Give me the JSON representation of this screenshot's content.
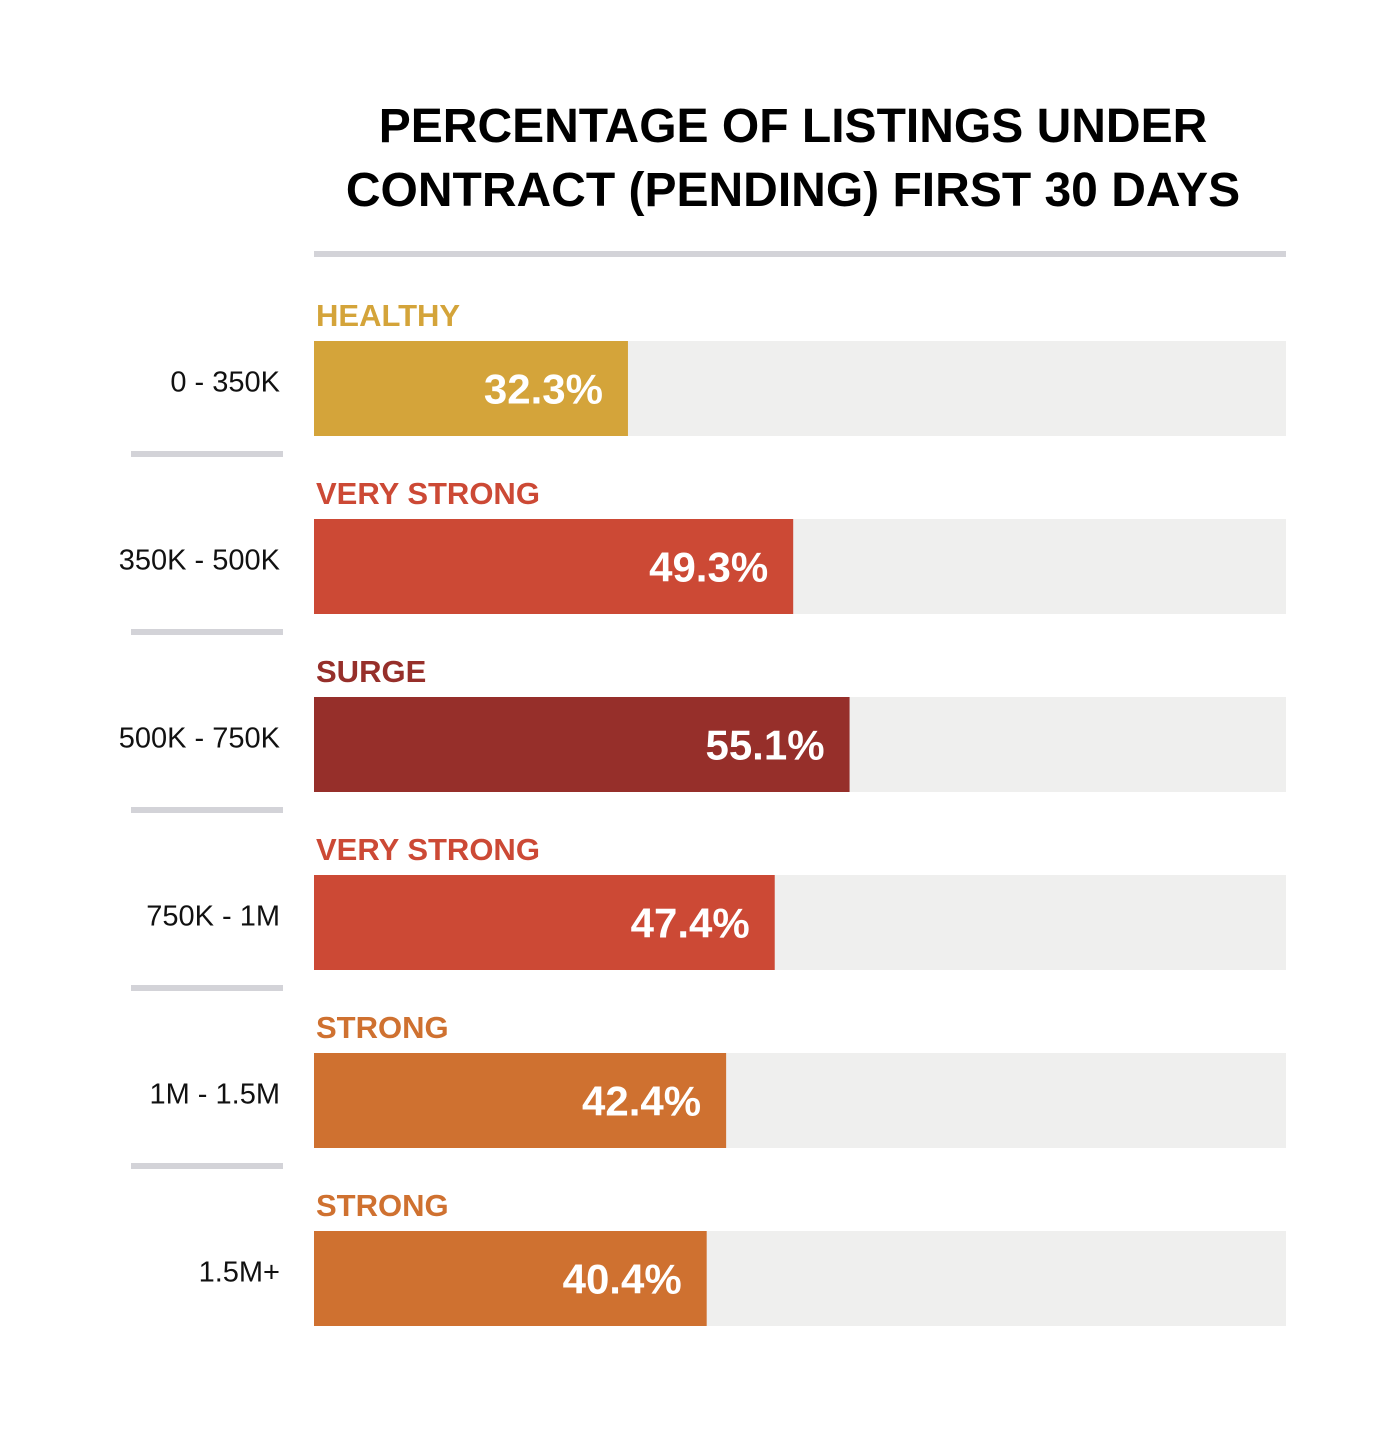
{
  "chart_data": {
    "type": "bar",
    "orientation": "horizontal",
    "title": "PERCENTAGE OF LISTINGS UNDER CONTRACT (PENDING) FIRST 30 DAYS",
    "title_lines": [
      "PERCENTAGE OF LISTINGS UNDER",
      "CONTRACT (PENDING) FIRST 30 DAYS"
    ],
    "categories": [
      "0 - 350K",
      "350K - 500K",
      "500K - 750K",
      "750K - 1M",
      "1M - 1.5M",
      "1.5M+"
    ],
    "values": [
      32.3,
      49.3,
      55.1,
      47.4,
      42.4,
      40.4
    ],
    "value_labels": [
      "32.3%",
      "49.3%",
      "55.1%",
      "47.4%",
      "42.4%",
      "40.4%"
    ],
    "statuses": [
      "HEALTHY",
      "VERY STRONG",
      "SURGE",
      "VERY STRONG",
      "STRONG",
      "STRONG"
    ],
    "status_colors": {
      "HEALTHY": "#D4A43A",
      "VERY STRONG": "#CC4935",
      "SURGE": "#962F2A",
      "STRONG": "#CF7130"
    },
    "xlim": [
      0,
      100
    ],
    "unit": "%",
    "track_color": "#EFEFEE",
    "rule_color": "#D3D3D8",
    "grid": false,
    "legend": "none"
  }
}
